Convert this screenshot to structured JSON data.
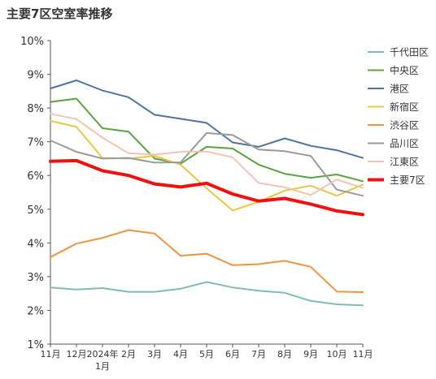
{
  "chart_data": {
    "type": "line",
    "title": "主要7区空室率推移",
    "xlabel": "",
    "ylabel": "",
    "x": [
      "11月",
      "12月",
      "2024年\n1月",
      "2月",
      "3月",
      "4月",
      "5月",
      "6月",
      "7月",
      "8月",
      "9月",
      "10月",
      "11月"
    ],
    "y_ticks": [
      "1%",
      "2%",
      "3%",
      "4%",
      "5%",
      "6%",
      "7%",
      "8%",
      "9%",
      "10%"
    ],
    "ylim": [
      1,
      10
    ],
    "grid": false,
    "legend_position": "right",
    "series": [
      {
        "name": "千代田区",
        "color": "#7dbdb4",
        "width": 2,
        "values": [
          2.68,
          2.62,
          2.66,
          2.55,
          2.55,
          2.64,
          2.84,
          2.68,
          2.58,
          2.52,
          2.28,
          2.18,
          2.15
        ]
      },
      {
        "name": "中央区",
        "color": "#5aa33f",
        "width": 2,
        "values": [
          8.18,
          8.28,
          7.4,
          7.3,
          6.5,
          6.35,
          6.85,
          6.8,
          6.32,
          6.05,
          5.93,
          6.03,
          5.83
        ]
      },
      {
        "name": "港区",
        "color": "#4e73a0",
        "width": 2,
        "values": [
          8.58,
          8.82,
          8.52,
          8.32,
          7.8,
          7.68,
          7.56,
          6.98,
          6.85,
          7.1,
          6.88,
          6.75,
          6.52
        ]
      },
      {
        "name": "新宿区",
        "color": "#e8c840",
        "width": 2,
        "values": [
          7.62,
          7.44,
          6.52,
          6.5,
          6.58,
          6.32,
          5.62,
          4.96,
          5.22,
          5.55,
          5.7,
          5.4,
          5.73
        ]
      },
      {
        "name": "渋谷区",
        "color": "#ed9440",
        "width": 2,
        "values": [
          3.58,
          3.98,
          4.15,
          4.38,
          4.28,
          3.62,
          3.68,
          3.34,
          3.37,
          3.47,
          3.29,
          2.56,
          2.54
        ]
      },
      {
        "name": "品川区",
        "color": "#9a9a9a",
        "width": 2,
        "values": [
          7.04,
          6.7,
          6.5,
          6.52,
          6.38,
          6.39,
          7.26,
          7.2,
          6.77,
          6.72,
          6.58,
          5.58,
          5.4
        ]
      },
      {
        "name": "江東区",
        "color": "#f2c3b2",
        "width": 2,
        "values": [
          7.83,
          7.67,
          7.12,
          6.66,
          6.62,
          6.7,
          6.71,
          6.54,
          5.78,
          5.65,
          5.42,
          5.88,
          5.63
        ]
      },
      {
        "name": "主要7区",
        "color": "#ee1111",
        "width": 4,
        "values": [
          6.42,
          6.44,
          6.14,
          6.0,
          5.75,
          5.66,
          5.77,
          5.45,
          5.24,
          5.32,
          5.15,
          4.95,
          4.84
        ]
      }
    ]
  }
}
